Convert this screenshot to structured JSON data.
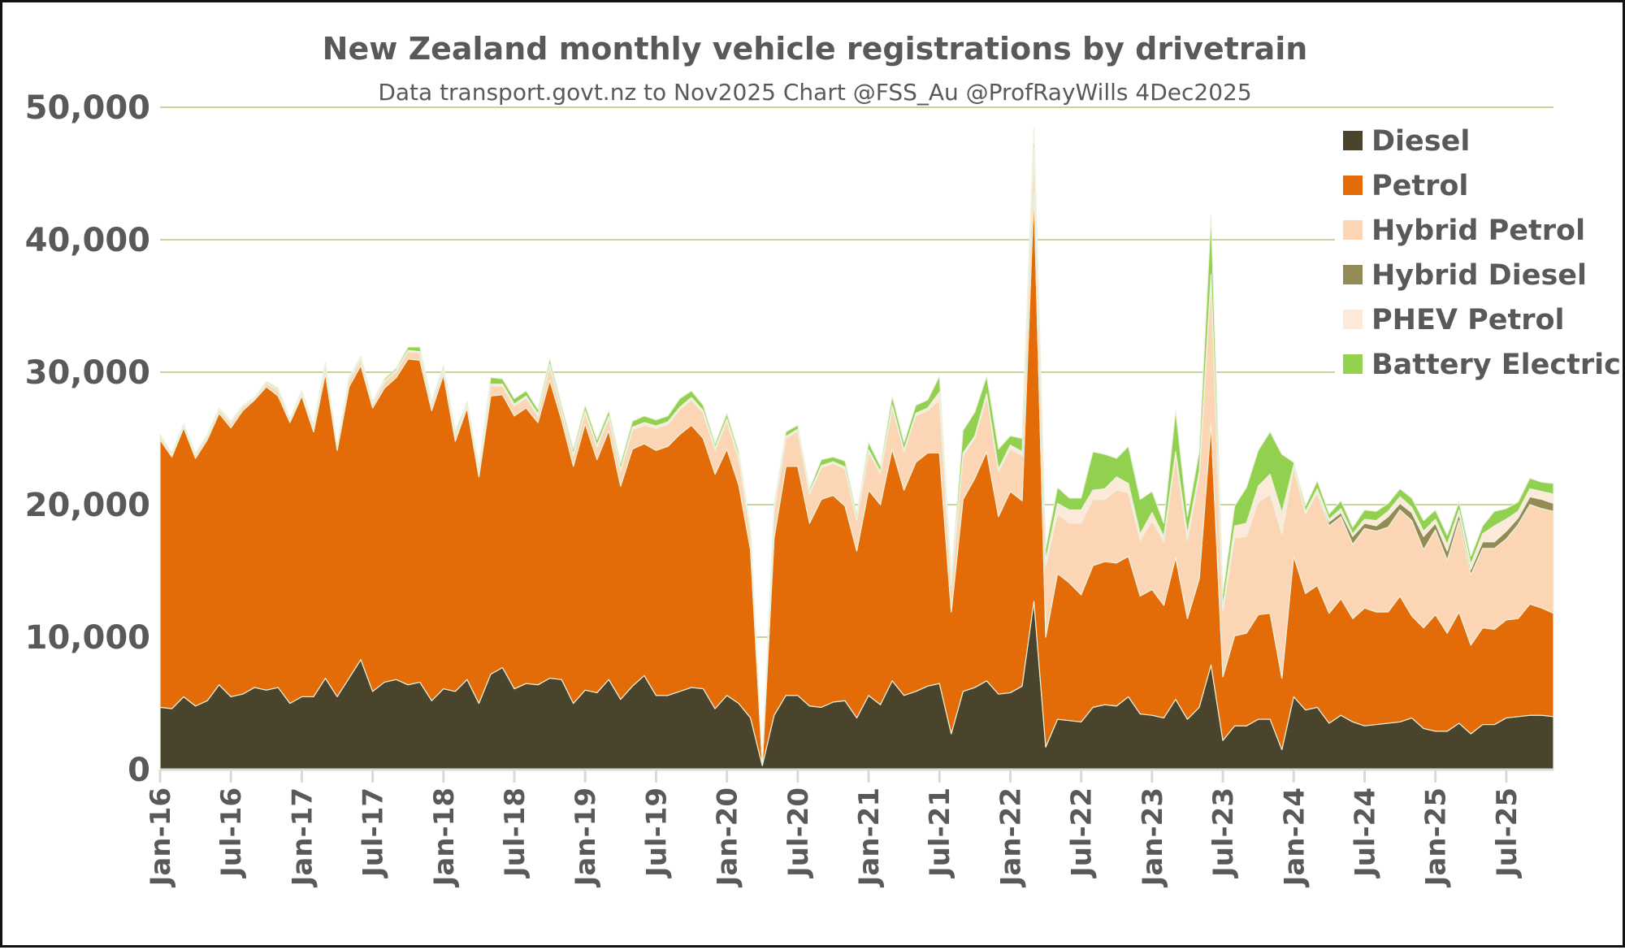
{
  "chart_data": {
    "type": "area",
    "stacked": true,
    "title": "New Zealand monthly vehicle registrations by drivetrain",
    "subtitle": "Data transport.govt.nz to Nov2025 Chart @FSS_Au @ProfRayWills 4Dec2025",
    "xlabel": "",
    "ylabel": "",
    "ylim": [
      0,
      50000
    ],
    "yticks": [
      "0",
      "10,000",
      "20,000",
      "30,000",
      "40,000",
      "50,000"
    ],
    "ytick_values": [
      0,
      10000,
      20000,
      30000,
      40000,
      50000
    ],
    "grid": true,
    "grid_color": "#c3d69b",
    "legend_position": "top-right",
    "xtick_labels": [
      "Jan-16",
      "Jul-16",
      "Jan-17",
      "Jul-17",
      "Jan-18",
      "Jul-18",
      "Jan-19",
      "Jul-19",
      "Jan-20",
      "Jul-20",
      "Jan-21",
      "Jul-21",
      "Jan-22",
      "Jul-22",
      "Jan-23",
      "Jul-23",
      "Jan-24",
      "Jul-24",
      "Jan-25",
      "Jul-25"
    ],
    "x": [
      "Jan-16",
      "Feb-16",
      "Mar-16",
      "Apr-16",
      "May-16",
      "Jun-16",
      "Jul-16",
      "Aug-16",
      "Sep-16",
      "Oct-16",
      "Nov-16",
      "Dec-16",
      "Jan-17",
      "Feb-17",
      "Mar-17",
      "Apr-17",
      "May-17",
      "Jun-17",
      "Jul-17",
      "Aug-17",
      "Sep-17",
      "Oct-17",
      "Nov-17",
      "Dec-17",
      "Jan-18",
      "Feb-18",
      "Mar-18",
      "Apr-18",
      "May-18",
      "Jun-18",
      "Jul-18",
      "Aug-18",
      "Sep-18",
      "Oct-18",
      "Nov-18",
      "Dec-18",
      "Jan-19",
      "Feb-19",
      "Mar-19",
      "Apr-19",
      "May-19",
      "Jun-19",
      "Jul-19",
      "Aug-19",
      "Sep-19",
      "Oct-19",
      "Nov-19",
      "Dec-19",
      "Jan-20",
      "Feb-20",
      "Mar-20",
      "Apr-20",
      "May-20",
      "Jun-20",
      "Jul-20",
      "Aug-20",
      "Sep-20",
      "Oct-20",
      "Nov-20",
      "Dec-20",
      "Jan-21",
      "Feb-21",
      "Mar-21",
      "Apr-21",
      "May-21",
      "Jun-21",
      "Jul-21",
      "Aug-21",
      "Sep-21",
      "Oct-21",
      "Nov-21",
      "Dec-21",
      "Jan-22",
      "Feb-22",
      "Mar-22",
      "Apr-22",
      "May-22",
      "Jun-22",
      "Jul-22",
      "Aug-22",
      "Sep-22",
      "Oct-22",
      "Nov-22",
      "Dec-22",
      "Jan-23",
      "Feb-23",
      "Mar-23",
      "Apr-23",
      "May-23",
      "Jun-23",
      "Jul-23",
      "Aug-23",
      "Sep-23",
      "Oct-23",
      "Nov-23",
      "Dec-23",
      "Jan-24",
      "Feb-24",
      "Mar-24",
      "Apr-24",
      "May-24",
      "Jun-24",
      "Jul-24",
      "Aug-24",
      "Sep-24",
      "Oct-24",
      "Nov-24",
      "Dec-24",
      "Jan-25",
      "Feb-25",
      "Mar-25",
      "Apr-25",
      "May-25",
      "Jun-25",
      "Jul-25",
      "Aug-25",
      "Sep-25",
      "Oct-25",
      "Nov-25"
    ],
    "series": [
      {
        "name": "Diesel",
        "color": "#4a442d",
        "values": [
          4700,
          4600,
          5500,
          4800,
          5200,
          6400,
          5500,
          5700,
          6200,
          6000,
          6200,
          5000,
          5500,
          5500,
          6900,
          5500,
          6900,
          8300,
          5900,
          6600,
          6800,
          6400,
          6600,
          5200,
          6100,
          5900,
          6800,
          5000,
          7200,
          7700,
          6100,
          6500,
          6400,
          6900,
          6800,
          5000,
          6000,
          5800,
          6800,
          5300,
          6300,
          7100,
          5600,
          5600,
          5900,
          6200,
          6100,
          4600,
          5600,
          5000,
          3900,
          300,
          4100,
          5600,
          5600,
          4800,
          4700,
          5100,
          5200,
          3900,
          5600,
          4900,
          6700,
          5600,
          5900,
          6300,
          6500,
          2700,
          5900,
          6200,
          6700,
          5700,
          5800,
          6300,
          12700,
          1700,
          3800,
          3700,
          3600,
          4700,
          4900,
          4800,
          5500,
          4200,
          4100,
          3900,
          5300,
          3800,
          4700,
          7900,
          2200,
          3300,
          3300,
          3800,
          3800,
          1500,
          5500,
          4500,
          4700,
          3500,
          4100,
          3600,
          3300,
          3400,
          3500,
          3600,
          3900,
          3100,
          2900,
          2900,
          3500,
          2700,
          3400,
          3400,
          3900,
          4000,
          4100,
          4100,
          4000
        ]
      },
      {
        "name": "Petrol",
        "color": "#e36c09",
        "values": [
          20200,
          19000,
          20300,
          18700,
          19700,
          20500,
          20300,
          21400,
          21700,
          22900,
          22000,
          21200,
          22700,
          20000,
          23000,
          18600,
          22000,
          22200,
          21400,
          22200,
          22800,
          24600,
          24300,
          21900,
          23700,
          18900,
          20500,
          17100,
          21000,
          20600,
          20600,
          20800,
          19800,
          22500,
          19600,
          17900,
          20100,
          17600,
          18800,
          16100,
          17900,
          17500,
          18500,
          18800,
          19400,
          19800,
          18900,
          17700,
          18600,
          16500,
          12700,
          100,
          13400,
          17300,
          17300,
          13800,
          15700,
          15600,
          14700,
          12600,
          15500,
          15100,
          17500,
          15500,
          17300,
          17600,
          17400,
          9200,
          14500,
          15800,
          17300,
          13400,
          15200,
          14000,
          30800,
          8300,
          11000,
          10400,
          9600,
          10700,
          10800,
          10800,
          10600,
          8900,
          9500,
          8500,
          10700,
          7600,
          9700,
          18200,
          4800,
          6800,
          7000,
          7900,
          8000,
          5400,
          10600,
          8800,
          9200,
          8300,
          8800,
          7800,
          8900,
          8500,
          8400,
          9500,
          7700,
          7600,
          8800,
          7400,
          8400,
          6700,
          7300,
          7200,
          7400,
          7400,
          8400,
          8100,
          7800
        ]
      },
      {
        "name": "Hybrid Petrol",
        "color": "#fcd5b5",
        "values": [
          250,
          150,
          150,
          250,
          250,
          250,
          350,
          250,
          100,
          250,
          450,
          150,
          200,
          300,
          550,
          150,
          450,
          450,
          250,
          450,
          450,
          550,
          550,
          400,
          350,
          350,
          200,
          350,
          750,
          650,
          750,
          750,
          500,
          1050,
          600,
          800,
          850,
          950,
          950,
          1150,
          1450,
          1400,
          1650,
          1650,
          1850,
          1900,
          1900,
          1800,
          2100,
          1950,
          1200,
          40,
          2000,
          2100,
          2650,
          2200,
          2400,
          2400,
          2800,
          2300,
          2900,
          2350,
          3100,
          2900,
          3500,
          3200,
          4000,
          2000,
          3300,
          3000,
          4200,
          3400,
          3200,
          3400,
          3000,
          5400,
          4500,
          4500,
          5400,
          5000,
          4700,
          5500,
          4800,
          4200,
          5200,
          4800,
          7700,
          5900,
          7800,
          10800,
          5000,
          7400,
          7300,
          8500,
          9000,
          10900,
          6700,
          6000,
          7000,
          6600,
          6200,
          5600,
          6000,
          6100,
          6400,
          6500,
          7200,
          5900,
          6400,
          5500,
          6900,
          5300,
          6000,
          6100,
          6100,
          7100,
          7500,
          7500,
          7700
        ]
      },
      {
        "name": "Hybrid Diesel",
        "color": "#948a54",
        "values": [
          0,
          0,
          0,
          0,
          0,
          0,
          0,
          0,
          0,
          0,
          0,
          0,
          0,
          0,
          0,
          0,
          0,
          0,
          0,
          0,
          0,
          0,
          0,
          0,
          0,
          0,
          0,
          0,
          0,
          0,
          0,
          0,
          0,
          0,
          0,
          0,
          0,
          0,
          0,
          0,
          0,
          0,
          0,
          0,
          0,
          0,
          0,
          0,
          0,
          0,
          0,
          0,
          0,
          0,
          0,
          0,
          0,
          0,
          0,
          0,
          0,
          0,
          0,
          0,
          0,
          0,
          0,
          0,
          0,
          0,
          0,
          0,
          0,
          0,
          0,
          0,
          0,
          0,
          0,
          0,
          0,
          0,
          0,
          0,
          0,
          0,
          0,
          0,
          0,
          0,
          0,
          0,
          0,
          0,
          0,
          0,
          100,
          100,
          100,
          300,
          300,
          600,
          400,
          400,
          800,
          500,
          600,
          1000,
          500,
          700,
          500,
          400,
          500,
          500,
          600,
          500,
          600,
          700,
          600
        ]
      },
      {
        "name": "PHEV Petrol",
        "color": "#fde9d9",
        "values": [
          50,
          50,
          50,
          50,
          50,
          50,
          50,
          50,
          50,
          50,
          50,
          50,
          50,
          50,
          100,
          50,
          100,
          100,
          100,
          100,
          100,
          100,
          100,
          100,
          100,
          100,
          100,
          100,
          150,
          150,
          150,
          150,
          150,
          150,
          150,
          150,
          150,
          150,
          150,
          150,
          200,
          200,
          200,
          200,
          200,
          200,
          200,
          200,
          200,
          200,
          150,
          0,
          150,
          150,
          150,
          150,
          150,
          150,
          150,
          150,
          150,
          150,
          200,
          150,
          200,
          200,
          600,
          200,
          200,
          200,
          200,
          200,
          300,
          300,
          400,
          400,
          800,
          1000,
          1000,
          700,
          800,
          1000,
          700,
          500,
          600,
          400,
          300,
          500,
          300,
          500,
          300,
          900,
          1000,
          1200,
          1500,
          1600,
          100,
          100,
          200,
          200,
          300,
          200,
          300,
          400,
          400,
          500,
          400,
          400,
          300,
          500,
          300,
          400,
          600,
          1200,
          900,
          500,
          600,
          600,
          700
        ]
      },
      {
        "name": "Battery Electric",
        "color": "#92d050",
        "values": [
          100,
          100,
          100,
          100,
          100,
          100,
          100,
          100,
          50,
          100,
          100,
          100,
          150,
          150,
          150,
          100,
          150,
          150,
          150,
          150,
          150,
          250,
          350,
          200,
          250,
          250,
          200,
          250,
          500,
          400,
          400,
          400,
          350,
          400,
          350,
          350,
          400,
          400,
          400,
          400,
          450,
          500,
          450,
          450,
          650,
          500,
          400,
          300,
          400,
          350,
          250,
          10,
          350,
          350,
          300,
          250,
          450,
          350,
          450,
          350,
          550,
          400,
          700,
          550,
          600,
          600,
          1200,
          400,
          1700,
          1800,
          1300,
          1500,
          700,
          1000,
          1500,
          900,
          1200,
          900,
          900,
          2900,
          2600,
          1400,
          2800,
          2600,
          1600,
          1000,
          3100,
          1300,
          1500,
          4400,
          1000,
          1500,
          2700,
          2700,
          3200,
          4400,
          200,
          400,
          600,
          400,
          600,
          500,
          700,
          700,
          600,
          600,
          700,
          800,
          700,
          700,
          600,
          600,
          600,
          1100,
          800,
          700,
          800,
          700,
          800
        ]
      }
    ]
  }
}
